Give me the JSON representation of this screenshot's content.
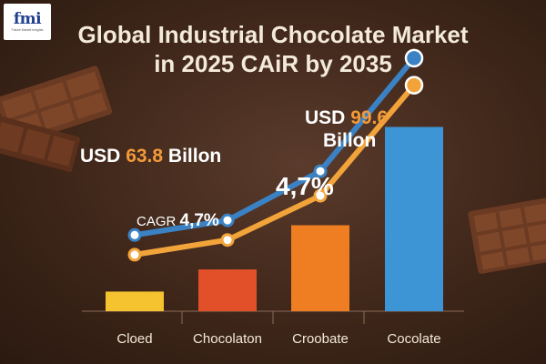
{
  "logo": {
    "mark": "fmi",
    "subtitle": "Future Market Insights"
  },
  "chart_data": {
    "type": "bar",
    "title_lines": [
      "Global Industrial Chocolate Market",
      "in 2025 CAiR by 2035"
    ],
    "categories": [
      "Cloed",
      "Chocolaton",
      "Croobate",
      "Cocolate"
    ],
    "values": [
      8,
      17,
      35,
      75
    ],
    "ylim": [
      0,
      100
    ],
    "grid": false,
    "series": [
      {
        "values": [
          23,
          29,
          47,
          92
        ],
        "color": "#f2a43a"
      },
      {
        "values": [
          31,
          37,
          57,
          103
        ],
        "color": "#3a82c4"
      }
    ],
    "bar_colors": [
      "#f5c230",
      "#e2502a",
      "#ef7d22",
      "#3e95d6"
    ],
    "annotations": {
      "start_value": {
        "prefix": "USD ",
        "value": "63.8",
        "suffix": " Billon"
      },
      "end_value": {
        "prefix": "USD ",
        "value": "99.6",
        "suffix": " Billon"
      },
      "cagr_label": {
        "prefix": "CAGR ",
        "value": "4,7%"
      },
      "cagr_value": "4,7%"
    }
  }
}
